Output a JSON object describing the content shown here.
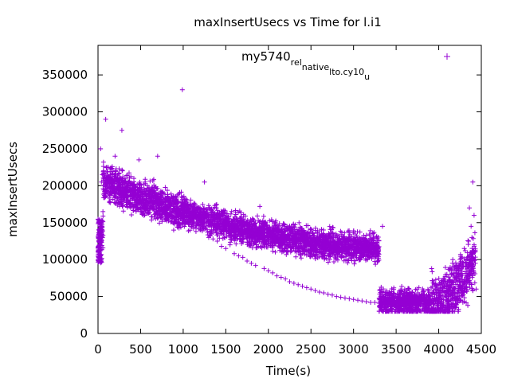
{
  "chart_data": {
    "type": "scatter",
    "title": "maxInsertUsecs vs Time for l.i1",
    "xlabel": "Time(s)",
    "ylabel": "maxInsertUsecs",
    "xlim": [
      0,
      4500
    ],
    "ylim": [
      0,
      390000
    ],
    "x_ticks": [
      0,
      500,
      1000,
      1500,
      2000,
      2500,
      3000,
      3500,
      4000,
      4500
    ],
    "y_ticks": [
      0,
      50000,
      100000,
      150000,
      200000,
      250000,
      300000,
      350000
    ],
    "grid": false,
    "legend_position": "top-right",
    "marker": "+",
    "color": "#9400d3",
    "series": [
      {
        "name": "my5740_rel_native_lto.cy10_u",
        "name_parts": [
          {
            "text": "my5740",
            "sub": false
          },
          {
            "text": "rel",
            "sub": true
          },
          {
            "text": "native",
            "sub": true
          },
          {
            "text": "lto.cy10",
            "sub": true
          },
          {
            "text": "u",
            "sub": true
          }
        ],
        "points": [
          [
            0,
            100000
          ],
          [
            5,
            112000
          ],
          [
            8,
            125000
          ],
          [
            12,
            140000
          ],
          [
            15,
            150000
          ],
          [
            18,
            135000
          ],
          [
            22,
            145000
          ],
          [
            25,
            120000
          ],
          [
            28,
            105000
          ],
          [
            30,
            250000
          ],
          [
            40,
            205000
          ],
          [
            50,
            215000
          ],
          [
            60,
            200000
          ],
          [
            75,
            190000
          ],
          [
            90,
            290000
          ],
          [
            100,
            210000
          ],
          [
            120,
            225000
          ],
          [
            150,
            215000
          ],
          [
            180,
            195000
          ],
          [
            200,
            240000
          ],
          [
            230,
            210000
          ],
          [
            260,
            190000
          ],
          [
            280,
            275000
          ],
          [
            300,
            205000
          ],
          [
            340,
            185000
          ],
          [
            380,
            195000
          ],
          [
            400,
            200000
          ],
          [
            450,
            182000
          ],
          [
            480,
            235000
          ],
          [
            500,
            188000
          ],
          [
            550,
            175000
          ],
          [
            600,
            178000
          ],
          [
            650,
            172000
          ],
          [
            700,
            240000
          ],
          [
            750,
            165000
          ],
          [
            800,
            180000
          ],
          [
            850,
            160000
          ],
          [
            900,
            155000
          ],
          [
            950,
            150000
          ],
          [
            990,
            330000
          ],
          [
            1000,
            148000
          ],
          [
            1050,
            160000
          ],
          [
            1100,
            145000
          ],
          [
            1150,
            138000
          ],
          [
            1200,
            140000
          ],
          [
            1250,
            205000
          ],
          [
            1300,
            130000
          ],
          [
            1350,
            128000
          ],
          [
            1400,
            125000
          ],
          [
            1450,
            118000
          ],
          [
            1500,
            115000
          ],
          [
            1550,
            120000
          ],
          [
            1600,
            108000
          ],
          [
            1650,
            105000
          ],
          [
            1700,
            103000
          ],
          [
            1750,
            98000
          ],
          [
            1800,
            95000
          ],
          [
            1850,
            92000
          ],
          [
            1900,
            172000
          ],
          [
            1950,
            88000
          ],
          [
            2000,
            85000
          ],
          [
            2050,
            82000
          ],
          [
            2100,
            78000
          ],
          [
            2150,
            76000
          ],
          [
            2200,
            74000
          ],
          [
            2250,
            70000
          ],
          [
            2300,
            68000
          ],
          [
            2350,
            66000
          ],
          [
            2400,
            64000
          ],
          [
            2450,
            62000
          ],
          [
            2500,
            60000
          ],
          [
            2550,
            58000
          ],
          [
            2600,
            56000
          ],
          [
            2650,
            55000
          ],
          [
            2700,
            53000
          ],
          [
            2750,
            52000
          ],
          [
            2800,
            50000
          ],
          [
            2850,
            49000
          ],
          [
            2900,
            48000
          ],
          [
            2950,
            47000
          ],
          [
            3000,
            46000
          ],
          [
            3050,
            45000
          ],
          [
            3100,
            44000
          ],
          [
            3150,
            43000
          ],
          [
            3200,
            42000
          ],
          [
            3250,
            42000
          ],
          [
            3300,
            41000
          ],
          [
            3340,
            145000
          ],
          [
            3400,
            41000
          ],
          [
            3450,
            40000
          ],
          [
            3500,
            40000
          ],
          [
            3550,
            40000
          ],
          [
            3600,
            41000
          ],
          [
            3650,
            40000
          ],
          [
            3700,
            42000
          ],
          [
            3750,
            41000
          ],
          [
            3800,
            43000
          ],
          [
            3850,
            44000
          ],
          [
            3900,
            46000
          ],
          [
            3950,
            48000
          ],
          [
            4000,
            55000
          ],
          [
            4050,
            62000
          ],
          [
            4100,
            70000
          ],
          [
            4150,
            80000
          ],
          [
            4200,
            90000
          ],
          [
            4250,
            100000
          ],
          [
            4300,
            115000
          ],
          [
            4350,
            125000
          ],
          [
            4380,
            145000
          ],
          [
            4400,
            205000
          ],
          [
            4420,
            110000
          ],
          [
            4430,
            95000
          ],
          [
            4440,
            60000
          ],
          [
            4415,
            160000
          ],
          [
            4390,
            130000
          ],
          [
            4360,
            170000
          ],
          [
            4330,
            90000
          ],
          [
            4300,
            60000
          ],
          [
            4250,
            45000
          ],
          [
            4200,
            40000
          ]
        ],
        "cloud": [
          {
            "x0": 40,
            "x1": 4430,
            "count": 5000
          }
        ]
      }
    ]
  }
}
